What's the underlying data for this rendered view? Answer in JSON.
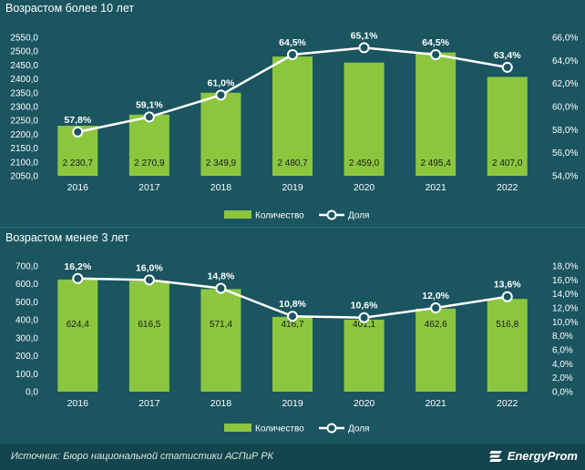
{
  "chart_data": [
    {
      "type": "bar",
      "title": "Возрастом более 10 лет",
      "categories": [
        "2016",
        "2017",
        "2018",
        "2019",
        "2020",
        "2021",
        "2022"
      ],
      "series": [
        {
          "name": "Количество",
          "type": "bar",
          "values": [
            2230.7,
            2270.9,
            2349.9,
            2480.7,
            2459.0,
            2495.4,
            2407.0
          ],
          "labels": [
            "2 230,7",
            "2 270,9",
            "2 349,9",
            "2 480,7",
            "2 459,0",
            "2 495,4",
            "2 407,0"
          ]
        },
        {
          "name": "Доля",
          "type": "line",
          "values": [
            57.8,
            59.1,
            61.0,
            64.5,
            65.1,
            64.5,
            63.4
          ],
          "labels": [
            "57,8%",
            "59,1%",
            "61,0%",
            "64,5%",
            "65,1%",
            "64,5%",
            "63,4%"
          ]
        }
      ],
      "ylim": [
        2050,
        2550
      ],
      "y2lim": [
        54,
        66
      ],
      "yticks": [
        "2050,0",
        "2100,0",
        "2150,0",
        "2200,0",
        "2250,0",
        "2300,0",
        "2350,0",
        "2400,0",
        "2450,0",
        "2500,0",
        "2550,0"
      ],
      "y2ticks": [
        "54,0%",
        "56,0%",
        "58,0%",
        "60,0%",
        "62,0%",
        "64,0%",
        "66,0%"
      ],
      "legend_position": "bottom",
      "grid": false
    },
    {
      "type": "bar",
      "title": "Возрастом менее 3 лет",
      "categories": [
        "2016",
        "2017",
        "2018",
        "2019",
        "2020",
        "2021",
        "2022"
      ],
      "series": [
        {
          "name": "Количество",
          "type": "bar",
          "values": [
            624.4,
            616.5,
            571.4,
            416.7,
            401.1,
            462.6,
            516.8
          ],
          "labels": [
            "624,4",
            "616,5",
            "571,4",
            "416,7",
            "401,1",
            "462,6",
            "516,8"
          ]
        },
        {
          "name": "Доля",
          "type": "line",
          "values": [
            16.2,
            16.0,
            14.8,
            10.8,
            10.6,
            12.0,
            13.6
          ],
          "labels": [
            "16,2%",
            "16,0%",
            "14,8%",
            "10,8%",
            "10,6%",
            "12,0%",
            "13,6%"
          ]
        }
      ],
      "ylim": [
        0,
        700
      ],
      "y2lim": [
        0,
        18
      ],
      "yticks": [
        "0,0",
        "100,0",
        "200,0",
        "300,0",
        "400,0",
        "500,0",
        "600,0",
        "700,0"
      ],
      "y2ticks": [
        "0,0%",
        "2,0%",
        "4,0%",
        "6,0%",
        "8,0%",
        "10,0%",
        "12,0%",
        "14,0%",
        "16,0%",
        "18,0%"
      ],
      "legend_position": "bottom",
      "grid": false
    }
  ],
  "colors": {
    "background": "#1a5560",
    "bar": "#8cc63f",
    "line": "#ffffff",
    "marker_fill": "#1a5560",
    "text": "#ffffff"
  },
  "footer": {
    "source": "Источник: Бюро национальной статистики АСПиР РК",
    "brand": "EnergyProm"
  }
}
